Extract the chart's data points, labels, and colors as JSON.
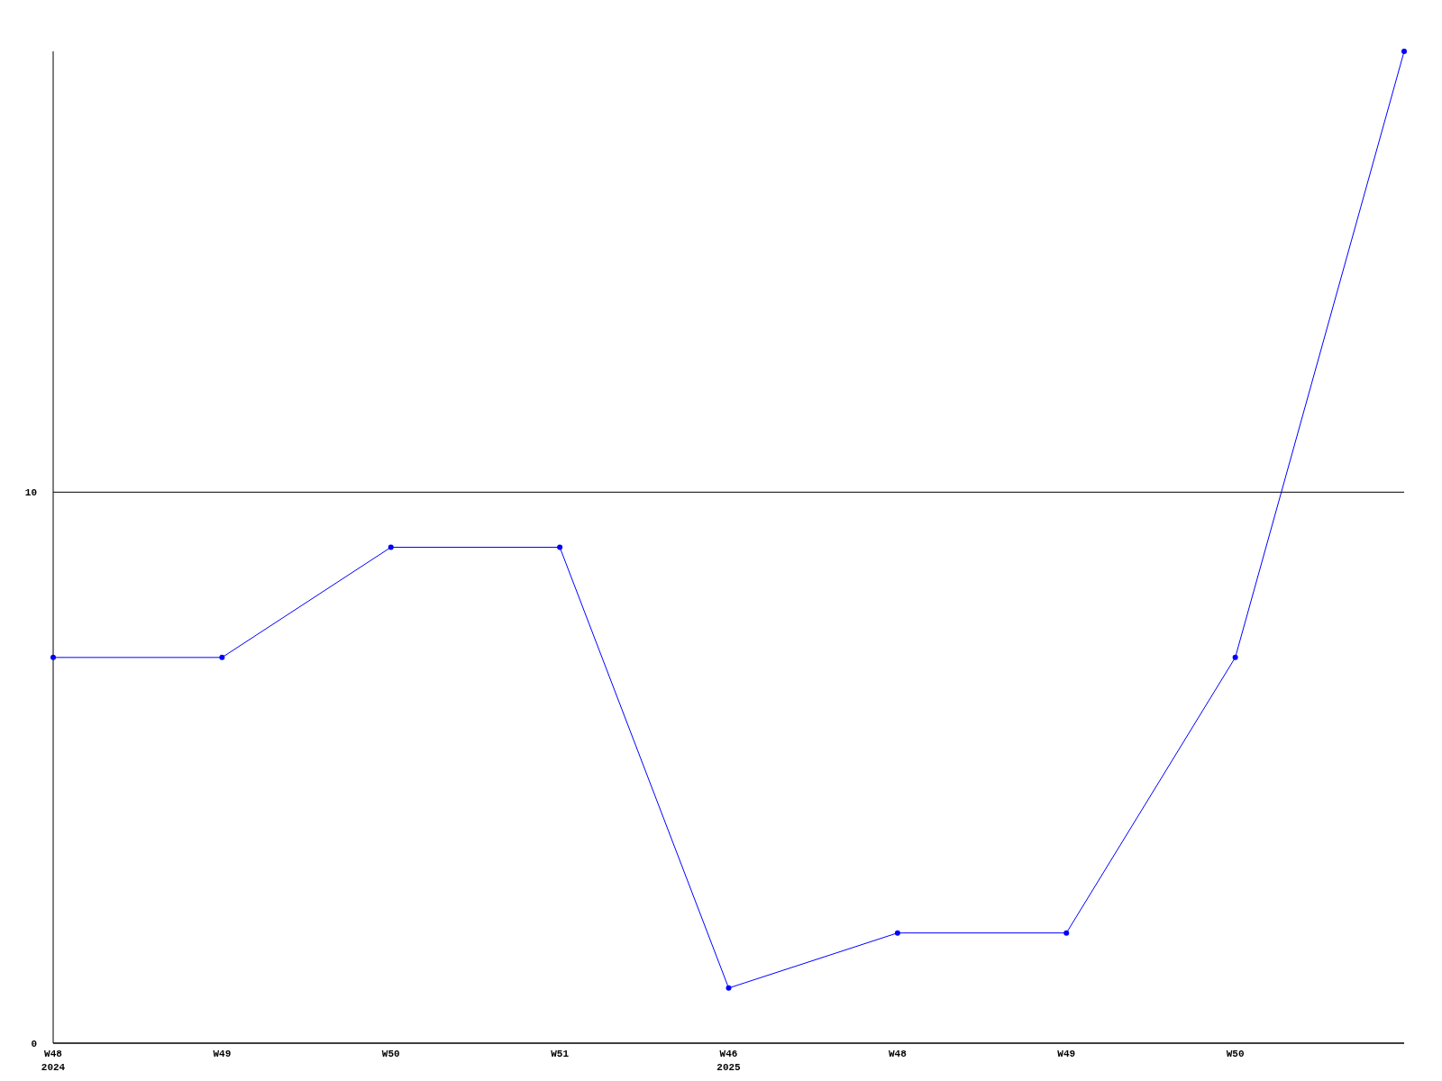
{
  "chart_data": {
    "type": "line",
    "categories": [
      "W48\n2024",
      "W49",
      "W50",
      "W51",
      "W46\n2025",
      "W48",
      "W49",
      "W50",
      null
    ],
    "series": [
      {
        "color": "#0000ff",
        "values": [
          7,
          7,
          9,
          9,
          1,
          2,
          2,
          7,
          18
        ]
      }
    ],
    "ylim": [
      0,
      18
    ],
    "yticks": [
      0,
      10
    ],
    "grid": "y",
    "marker": "circle"
  }
}
